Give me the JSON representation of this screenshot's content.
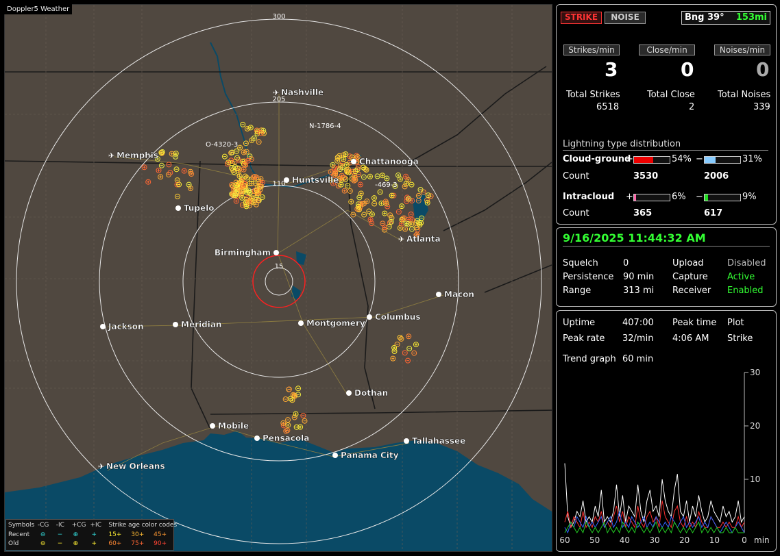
{
  "app_title": "Doppler5 Weather",
  "map": {
    "ring_labels": [
      "300",
      "205",
      "110",
      "15"
    ],
    "cities": [
      {
        "name": "Nashville",
        "airport": true
      },
      {
        "name": "Memphis",
        "airport": true
      },
      {
        "name": "Chattanooga",
        "airport": false
      },
      {
        "name": "Huntsville",
        "airport": false
      },
      {
        "name": "Tupelo",
        "airport": false
      },
      {
        "name": "Atlanta",
        "airport": true
      },
      {
        "name": "Birmingham",
        "airport": false
      },
      {
        "name": "Macon",
        "airport": false
      },
      {
        "name": "Jackson",
        "airport": false
      },
      {
        "name": "Meridian",
        "airport": false
      },
      {
        "name": "Montgomery",
        "airport": false
      },
      {
        "name": "Columbus",
        "airport": false
      },
      {
        "name": "Dothan",
        "airport": false
      },
      {
        "name": "Mobile",
        "airport": false
      },
      {
        "name": "Pensacola",
        "airport": false
      },
      {
        "name": "Tallahassee",
        "airport": false
      },
      {
        "name": "Panama City",
        "airport": false
      },
      {
        "name": "New Orleans",
        "airport": true
      }
    ],
    "cell_labels": [
      "O-4320-3",
      "N-1786-4",
      "-469-3"
    ],
    "colors": {
      "land": "#504840",
      "water": "#0a4a66",
      "ring": "#e8e8e8",
      "close_ring": "#ff2020"
    }
  },
  "legend": {
    "symbols_label": "Symbols",
    "cg_minus": "-CG",
    "ic_minus": "-IC",
    "cg_plus": "+CG",
    "ic_plus": "+IC",
    "age_label": "Strike age color codes",
    "recent_label": "Recent",
    "old_label": "Old",
    "recent_ages": [
      "15+",
      "30+",
      "45+"
    ],
    "old_ages": [
      "60+",
      "75+",
      "90+"
    ]
  },
  "header": {
    "strike_button": "STRIKE",
    "noise_button": "NOISE",
    "bearing": "Bng 39°",
    "distance": "153mi"
  },
  "rates": {
    "strikes_label": "Strikes/min",
    "strikes_value": "3",
    "close_label": "Close/min",
    "close_value": "0",
    "noises_label": "Noises/min",
    "noises_value": "0"
  },
  "totals": {
    "strikes_label": "Total Strikes",
    "strikes_value": "6518",
    "close_label": "Total Close",
    "close_value": "2",
    "noises_label": "Total Noises",
    "noises_value": "339"
  },
  "distribution": {
    "title": "Lightning type distribution",
    "cloud_ground_label": "Cloud-ground",
    "cg_plus_sign": "+",
    "cg_plus_pct": "54%",
    "cg_plus_fill": 0.54,
    "cg_plus_color": "#ee0000",
    "cg_minus_sign": "−",
    "cg_minus_pct": "31%",
    "cg_minus_fill": 0.31,
    "cg_minus_color": "#88ccff",
    "count_label": "Count",
    "cg_plus_count": "3530",
    "cg_minus_count": "2006",
    "intracloud_label": "Intracloud",
    "ic_plus_sign": "+",
    "ic_plus_pct": "6%",
    "ic_plus_fill": 0.06,
    "ic_plus_color": "#ff66aa",
    "ic_minus_sign": "−",
    "ic_minus_pct": "9%",
    "ic_minus_fill": 0.09,
    "ic_minus_color": "#22dd22",
    "ic_count_label": "Count",
    "ic_plus_count": "365",
    "ic_minus_count": "617"
  },
  "status": {
    "datetime": "9/16/2025 11:44:32 AM",
    "squelch_label": "Squelch",
    "squelch_value": "0",
    "persistence_label": "Persistence",
    "persistence_value": "90 min",
    "range_label": "Range",
    "range_value": "313 mi",
    "upload_label": "Upload",
    "upload_value": "Disabled",
    "capture_label": "Capture",
    "capture_value": "Active",
    "receiver_label": "Receiver",
    "receiver_value": "Enabled"
  },
  "stats": {
    "uptime_label": "Uptime",
    "uptime_value": "407:00",
    "peak_time_label": "Peak time",
    "plot_label": "Plot",
    "peak_rate_label": "Peak rate",
    "peak_rate_value": "32/min",
    "peak_time_value": "4:06 AM",
    "plot_value": "Strike",
    "trend_label": "Trend graph",
    "trend_value": "60 min"
  },
  "trend": {
    "y_ticks": [
      "30",
      "20",
      "10"
    ],
    "x_ticks": [
      "60",
      "50",
      "40",
      "30",
      "20",
      "10",
      "0"
    ],
    "x_unit": "min"
  },
  "chart_data": {
    "type": "line",
    "xlabel": "min",
    "ylabel": "",
    "x_range": [
      60,
      0
    ],
    "ylim": [
      0,
      30
    ],
    "series": [
      {
        "color": "#ffffff",
        "values": [
          13,
          3,
          1,
          2,
          4,
          3,
          6,
          2,
          3,
          2,
          5,
          3,
          8,
          2,
          3,
          2,
          4,
          9,
          3,
          7,
          2,
          5,
          4,
          3,
          9,
          4,
          2,
          6,
          8,
          4,
          5,
          3,
          10,
          6,
          4,
          3,
          8,
          11,
          4,
          3,
          6,
          2,
          5,
          3,
          7,
          4,
          2,
          3,
          6,
          4,
          3,
          2,
          5,
          3,
          4,
          2,
          3,
          6,
          2,
          3
        ]
      },
      {
        "color": "#ff3030",
        "values": [
          2,
          4,
          1,
          3,
          2,
          1,
          4,
          1,
          2,
          1,
          3,
          2,
          4,
          1,
          2,
          1,
          3,
          5,
          2,
          4,
          1,
          3,
          2,
          1,
          5,
          2,
          1,
          3,
          4,
          2,
          3,
          1,
          6,
          3,
          2,
          1,
          4,
          5,
          2,
          1,
          3,
          1,
          2,
          1,
          4,
          2,
          1,
          1,
          3,
          2,
          1,
          1,
          2,
          1,
          2,
          1,
          1,
          3,
          1,
          2
        ]
      },
      {
        "color": "#3366ff",
        "values": [
          1,
          0,
          2,
          1,
          3,
          2,
          1,
          3,
          1,
          2,
          1,
          2,
          3,
          1,
          2,
          3,
          1,
          2,
          4,
          1,
          2,
          1,
          3,
          2,
          1,
          2,
          3,
          1,
          2,
          1,
          3,
          2,
          1,
          2,
          1,
          3,
          2,
          1,
          2,
          3,
          1,
          2,
          1,
          2,
          3,
          1,
          2,
          1,
          3,
          2,
          1,
          0,
          1,
          2,
          1,
          0,
          1,
          2,
          1,
          0
        ]
      },
      {
        "color": "#22cc22",
        "values": [
          0,
          1,
          2,
          1,
          0,
          1,
          0,
          2,
          1,
          0,
          1,
          0,
          1,
          2,
          0,
          1,
          0,
          1,
          0,
          2,
          1,
          0,
          1,
          0,
          2,
          1,
          0,
          1,
          0,
          1,
          2,
          0,
          1,
          0,
          1,
          0,
          2,
          1,
          0,
          1,
          0,
          1,
          0,
          1,
          2,
          0,
          1,
          0,
          1,
          0,
          1,
          0,
          0,
          1,
          0,
          0,
          1,
          0,
          0,
          0
        ]
      }
    ]
  }
}
